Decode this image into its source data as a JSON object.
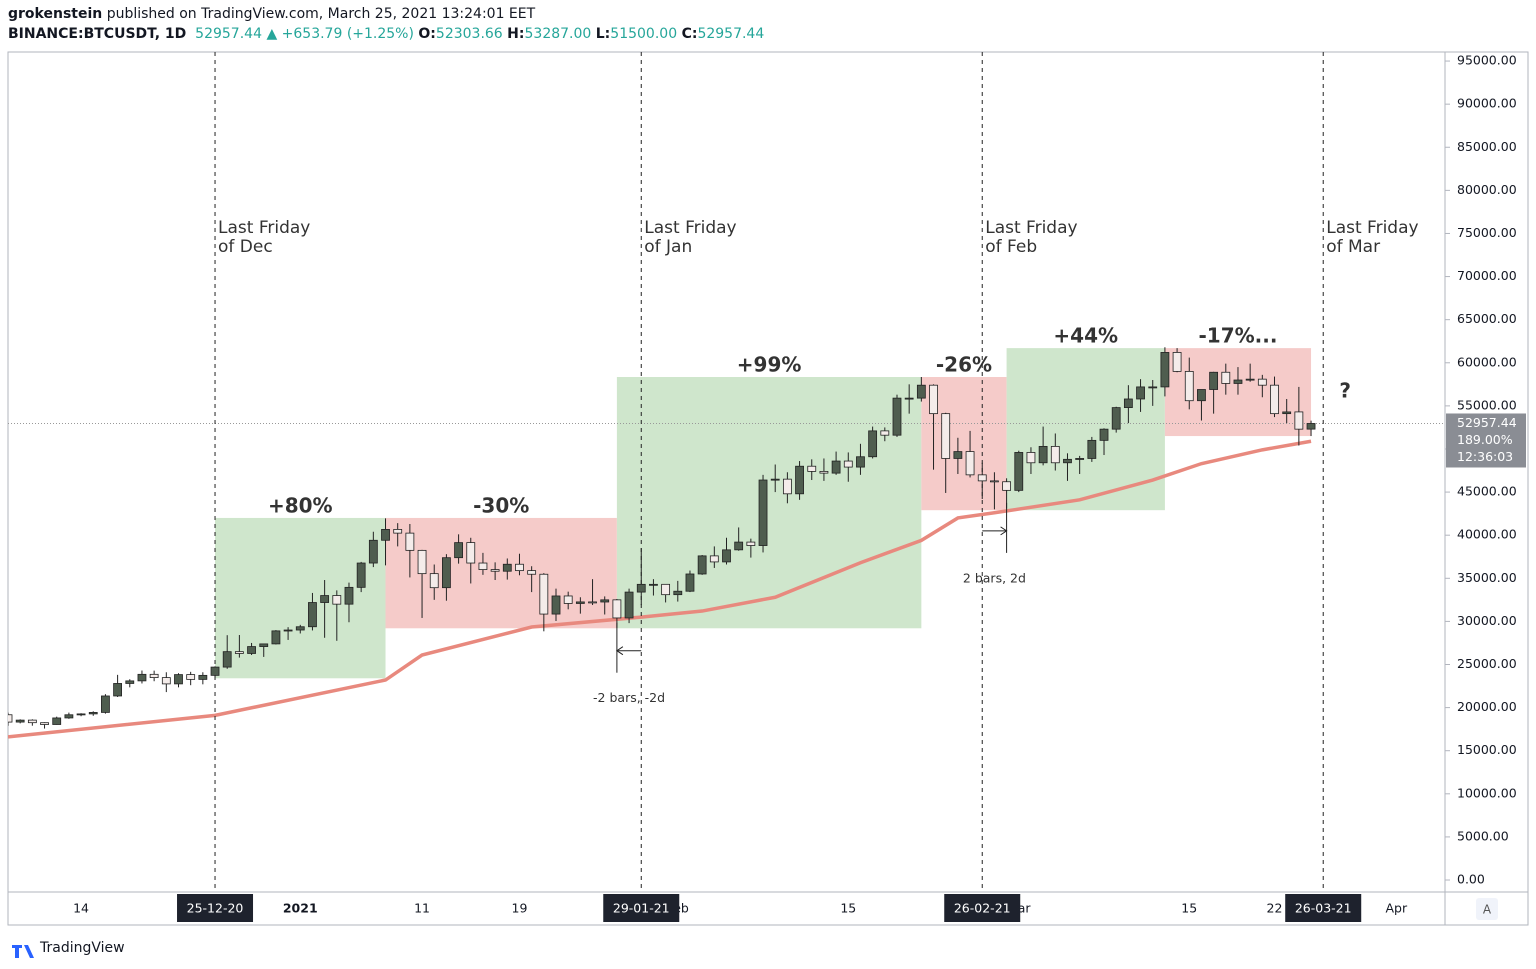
{
  "header": {
    "author": "grokenstein",
    "published": "published on TradingView.com, March 25, 2021 13:24:01 EET",
    "symbol": "BINANCE:BTCUSDT, 1D",
    "last": "52957.44",
    "change": "▲ +653.79 (+1.25%)",
    "ohlc": [
      {
        "label": "O:",
        "value": "52303.66"
      },
      {
        "label": "H:",
        "value": "53287.00"
      },
      {
        "label": "L:",
        "value": "51500.00"
      },
      {
        "label": "C:",
        "value": "52957.44"
      }
    ]
  },
  "chart_data": {
    "type": "candlestick",
    "xlim": [
      0,
      118
    ],
    "ylim": [
      -1390,
      96050
    ],
    "yticks": [
      {
        "value": 0,
        "label": "0.00"
      },
      {
        "value": 5000,
        "label": "5000.00"
      },
      {
        "value": 10000,
        "label": "10000.00"
      },
      {
        "value": 15000,
        "label": "15000.00"
      },
      {
        "value": 20000,
        "label": "20000.00"
      },
      {
        "value": 25000,
        "label": "25000.00"
      },
      {
        "value": 30000,
        "label": "30000.00"
      },
      {
        "value": 35000,
        "label": "35000.00"
      },
      {
        "value": 40000,
        "label": "40000.00"
      },
      {
        "value": 45000,
        "label": "45000.00"
      },
      {
        "value": 50000,
        "label": "50000.00"
      },
      {
        "value": 55000,
        "label": "55000.00"
      },
      {
        "value": 60000,
        "label": "60000.00"
      },
      {
        "value": 65000,
        "label": "65000.00"
      },
      {
        "value": 70000,
        "label": "70000.00"
      },
      {
        "value": 75000,
        "label": "75000.00"
      },
      {
        "value": 80000,
        "label": "80000.00"
      },
      {
        "value": 85000,
        "label": "85000.00"
      },
      {
        "value": 90000,
        "label": "90000.00"
      },
      {
        "value": 95000,
        "label": "95000.00"
      }
    ],
    "xticks": [
      {
        "value": 6,
        "label": "14"
      },
      {
        "value": 24,
        "label": "2021"
      },
      {
        "value": 34,
        "label": "11"
      },
      {
        "value": 42,
        "label": "19"
      },
      {
        "value": 55,
        "label": "Feb"
      },
      {
        "value": 69,
        "label": "15"
      },
      {
        "value": 83,
        "label": "Mar"
      },
      {
        "value": 97,
        "label": "15"
      },
      {
        "value": 104,
        "label": "22"
      },
      {
        "value": 114,
        "label": "Apr"
      }
    ],
    "up_color": "#4f5d4f",
    "down_color": "#f4ecea",
    "open": [
      19170,
      18320,
      18550,
      18250,
      18040,
      18800,
      19170,
      19270,
      19440,
      21350,
      22800,
      23100,
      23860,
      23480,
      22750,
      23830,
      23270,
      23740,
      24700,
      26490,
      26280,
      27080,
      27390,
      28900,
      29000,
      29380,
      32190,
      33000,
      32000,
      33950,
      36770,
      39410,
      40670,
      40240,
      38240,
      35540,
      33910,
      37390,
      39140,
      36770,
      36010,
      35820,
      36630,
      35890,
      35470,
      30850,
      32950,
      32080,
      32260,
      32250,
      32500,
      30400,
      33400,
      34300,
      34300,
      33100,
      33500,
      35500,
      37600,
      36900,
      38300,
      39200,
      38800,
      46400,
      46500,
      44800,
      48000,
      47400,
      47200,
      48600,
      47900,
      49100,
      52100,
      51600,
      55900,
      55900,
      57400,
      54100,
      48900,
      49700,
      47000,
      46300,
      46200,
      45200,
      49600,
      48400,
      50300,
      48400,
      48800,
      48900,
      51000,
      52300,
      54800,
      55800,
      57200,
      57200,
      61200,
      59000,
      55600,
      56900,
      58900,
      57600,
      58000,
      58100,
      57400,
      54100,
      54300,
      52303.66
    ],
    "high": [
      19420,
      18640,
      18640,
      18290,
      18950,
      19420,
      19350,
      19570,
      21560,
      23800,
      23290,
      24300,
      24290,
      24100,
      23990,
      24150,
      24100,
      24790,
      28400,
      28420,
      27500,
      27410,
      28990,
      29330,
      29600,
      33300,
      34800,
      33600,
      34500,
      36900,
      40400,
      41950,
      41400,
      41300,
      38300,
      36600,
      37800,
      40100,
      39700,
      37950,
      36850,
      37300,
      37850,
      36400,
      35600,
      33800,
      33450,
      32800,
      34900,
      32900,
      32600,
      33800,
      38500,
      34900,
      34300,
      34700,
      35900,
      37700,
      38700,
      39700,
      40900,
      39600,
      47000,
      48200,
      47300,
      48600,
      48800,
      48900,
      49700,
      49600,
      50600,
      52600,
      52500,
      56300,
      57500,
      58350,
      57500,
      54200,
      51300,
      52100,
      48400,
      47300,
      46600,
      49800,
      50200,
      52600,
      51800,
      49500,
      49200,
      51400,
      52400,
      54900,
      57400,
      58100,
      58000,
      61800,
      61700,
      60600,
      56900,
      58950,
      59900,
      59500,
      59900,
      58600,
      58400,
      55800,
      57200,
      53287
    ],
    "low": [
      17900,
      18170,
      17900,
      17570,
      18020,
      18700,
      19000,
      19050,
      19300,
      21230,
      22350,
      22800,
      23060,
      21800,
      22350,
      22600,
      22700,
      23430,
      24500,
      25800,
      26100,
      25880,
      27320,
      27850,
      28600,
      28950,
      28100,
      27750,
      29900,
      33400,
      36300,
      36500,
      38700,
      35100,
      30400,
      32500,
      32400,
      36700,
      34400,
      35400,
      34800,
      34850,
      35350,
      33400,
      28850,
      30050,
      31400,
      30900,
      31900,
      30800,
      29250,
      29800,
      31900,
      33000,
      32200,
      32300,
      33400,
      35400,
      36200,
      36600,
      38200,
      37400,
      38000,
      45000,
      43700,
      44100,
      46400,
      46300,
      47000,
      46200,
      47000,
      48900,
      50900,
      51400,
      54100,
      55500,
      47600,
      44900,
      47100,
      46700,
      44200,
      43000,
      43100,
      45000,
      47100,
      48100,
      47500,
      46300,
      47100,
      48500,
      49300,
      51900,
      53000,
      54300,
      55000,
      56100,
      58900,
      54600,
      53300,
      54100,
      56300,
      56300,
      57800,
      56000,
      53700,
      53000,
      50400,
      51500
    ],
    "close": [
      18320,
      18550,
      18250,
      18040,
      18800,
      19170,
      19270,
      19440,
      21350,
      22800,
      23100,
      23860,
      23480,
      22750,
      23830,
      23270,
      23740,
      24700,
      26490,
      26280,
      27080,
      27390,
      28900,
      29000,
      29380,
      32190,
      33000,
      32000,
      33950,
      36770,
      39410,
      40670,
      40240,
      38240,
      35540,
      33910,
      37390,
      39140,
      36770,
      36010,
      35820,
      36630,
      35890,
      35470,
      30850,
      32950,
      32080,
      32260,
      32250,
      32500,
      30400,
      33400,
      34300,
      34300,
      33100,
      33500,
      35500,
      37600,
      36900,
      38300,
      39200,
      38800,
      46400,
      46500,
      44800,
      48000,
      47400,
      47200,
      48600,
      47900,
      49100,
      52100,
      51600,
      55900,
      55900,
      57400,
      54100,
      48900,
      49700,
      47000,
      46300,
      46200,
      45200,
      49600,
      48400,
      50300,
      48400,
      48800,
      48900,
      51000,
      52300,
      54800,
      55800,
      57200,
      57200,
      61200,
      59000,
      55600,
      56900,
      58900,
      57600,
      58000,
      58100,
      57400,
      54100,
      54300,
      52300,
      52957.44
    ],
    "ma": {
      "color": "#e8897e",
      "x": [
        0,
        17,
        31,
        34,
        43,
        52,
        57,
        63,
        70,
        75,
        78,
        81,
        88,
        94,
        98,
        103,
        107
      ],
      "values": [
        16600,
        19100,
        23200,
        26100,
        29350,
        30500,
        31200,
        32800,
        36800,
        39400,
        42000,
        42600,
        44100,
        46400,
        48300,
        49900,
        50900
      ]
    },
    "ranges": [
      {
        "label": "+80%",
        "x": [
          17,
          31
        ],
        "y": [
          23400,
          42000
        ],
        "color": "#cfe6cc"
      },
      {
        "label": "-30%",
        "x": [
          31,
          50
        ],
        "y": [
          29200,
          42000
        ],
        "color": "#f5cbc9"
      },
      {
        "label": "+99%",
        "x": [
          50,
          75
        ],
        "y": [
          29200,
          58350
        ],
        "color": "#cfe6cc"
      },
      {
        "label": "-26%",
        "x": [
          75,
          82
        ],
        "y": [
          42900,
          58350
        ],
        "color": "#f5cbc9"
      },
      {
        "label": "+44%",
        "x": [
          82,
          95
        ],
        "y": [
          42900,
          61700
        ],
        "color": "#cfe6cc"
      },
      {
        "label": "-17%...",
        "x": [
          95,
          107
        ],
        "y": [
          51500,
          61700
        ],
        "color": "#f5cbc9"
      }
    ],
    "markers": [
      {
        "x": 17,
        "label": "25-12-20",
        "note": [
          "Last Friday",
          "of Dec"
        ]
      },
      {
        "x": 52,
        "label": "29-01-21",
        "note": [
          "Last Friday",
          "of Jan"
        ]
      },
      {
        "x": 80,
        "label": "26-02-21",
        "note": [
          "Last Friday",
          "of Feb"
        ]
      },
      {
        "x": 108,
        "label": "26-03-21",
        "note": [
          "Last Friday",
          "of Mar"
        ]
      }
    ],
    "measures": [
      {
        "from": 52,
        "to": 50,
        "y": 26600,
        "label": "-2 bars, -2d"
      },
      {
        "from": 80,
        "to": 82,
        "y": 40500,
        "label": "2 bars, 2d"
      }
    ],
    "question": {
      "x": 109.8,
      "y": 56600,
      "text": "?"
    },
    "price_tag": {
      "value": 52957.44,
      "lines": [
        "52957.44",
        "189.00%",
        "12:36:03"
      ]
    }
  },
  "footer": {
    "logo": "TradingView",
    "scale_button": "A"
  }
}
